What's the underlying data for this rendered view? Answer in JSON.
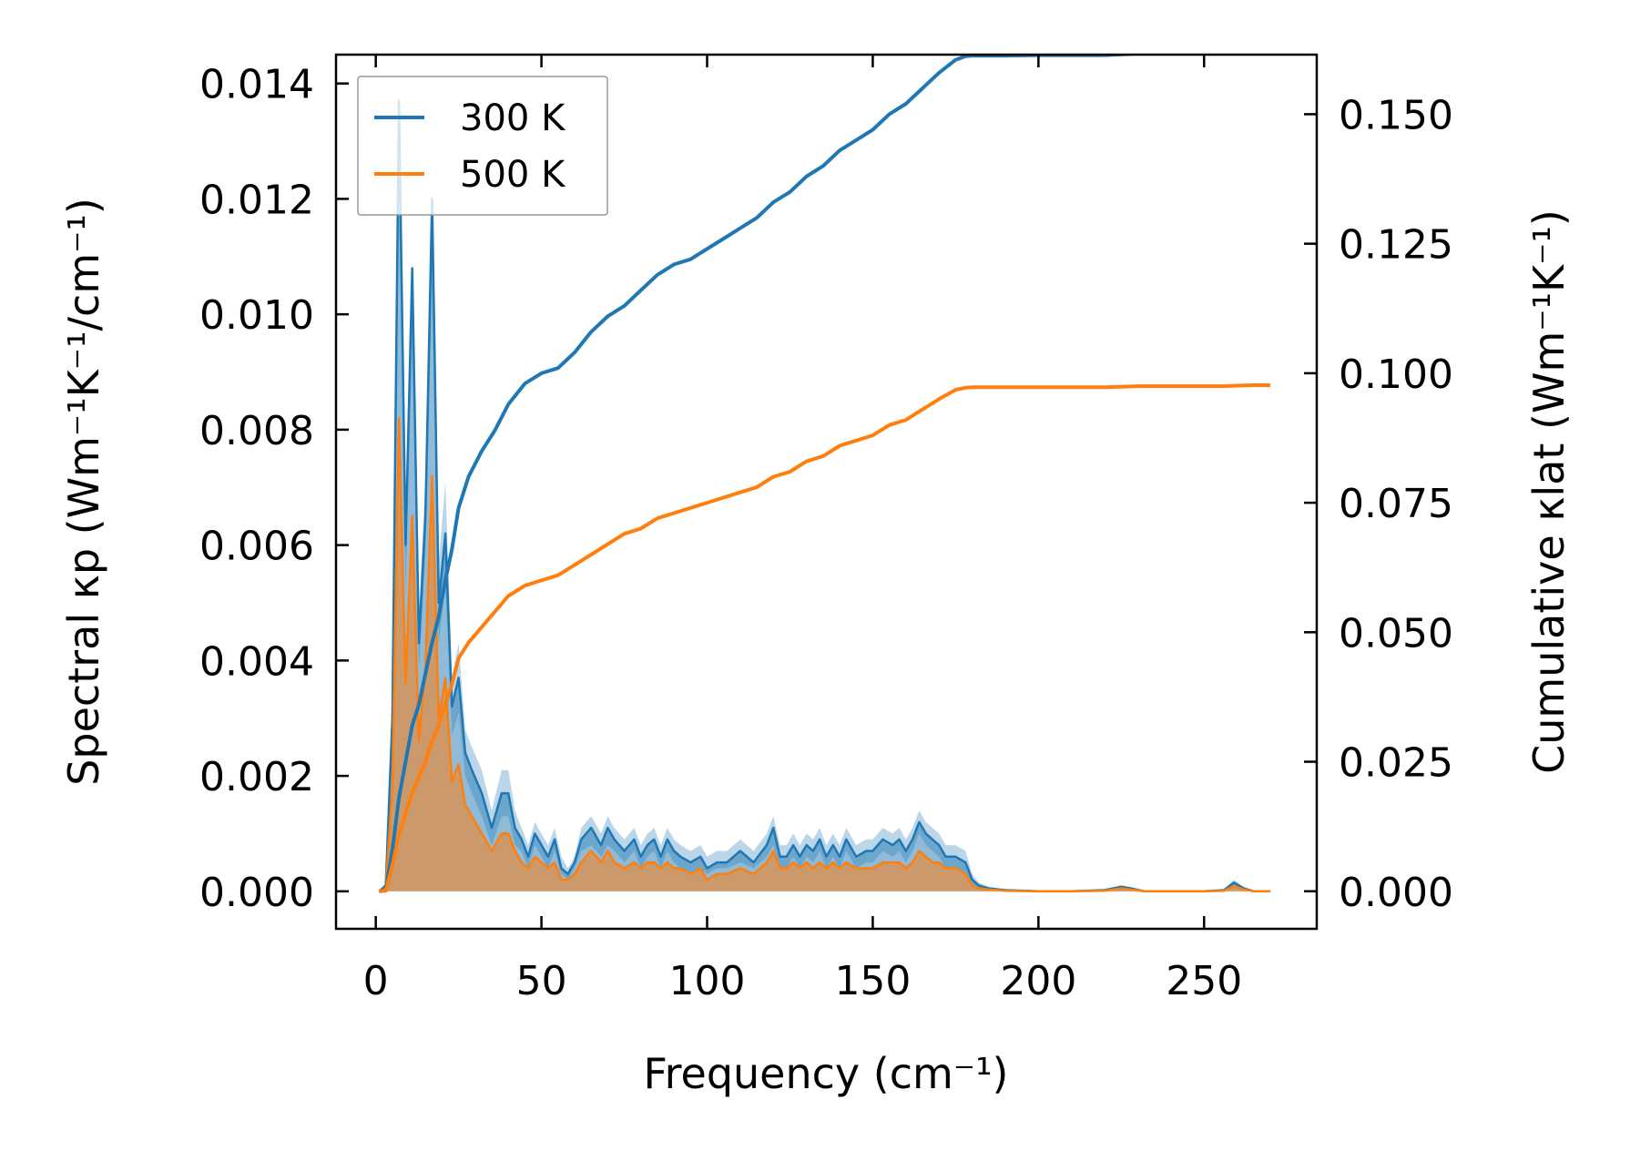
{
  "chart_data": {
    "type": "line",
    "x_label": "Frequency (cm⁻¹)",
    "y_left_label": "Spectral κp (Wm⁻¹K⁻¹/cm⁻¹)",
    "y_right_label": "Cumulative κlat (Wm⁻¹K⁻¹)",
    "xlim": [
      -12,
      284
    ],
    "ylim_left": [
      -0.00065,
      0.0145
    ],
    "ylim_right": [
      -0.00725,
      0.1615
    ],
    "x_ticks": [
      "0",
      "50",
      "100",
      "150",
      "200",
      "250"
    ],
    "x_tick_values": [
      0,
      50,
      100,
      150,
      200,
      250
    ],
    "y_left_ticks": [
      "0.000",
      "0.002",
      "0.004",
      "0.006",
      "0.008",
      "0.010",
      "0.012",
      "0.014"
    ],
    "y_left_tick_values": [
      0,
      0.002,
      0.004,
      0.006,
      0.008,
      0.01,
      0.012,
      0.014
    ],
    "y_right_ticks": [
      "0.000",
      "0.025",
      "0.050",
      "0.075",
      "0.100",
      "0.125",
      "0.150"
    ],
    "y_right_tick_values": [
      0,
      0.025,
      0.05,
      0.075,
      0.1,
      0.125,
      0.15
    ],
    "legend": {
      "position": "top-left",
      "entries": [
        "300 K",
        "500 K"
      ]
    },
    "series": [
      {
        "name": "300 K",
        "color": "#1f77b4",
        "spectral": {
          "x": [
            1,
            3,
            5,
            7,
            9,
            11,
            13,
            15,
            17,
            19,
            21,
            23,
            25,
            27,
            29,
            32,
            35,
            38,
            40,
            42,
            44,
            46,
            48,
            50,
            52,
            54,
            56,
            58,
            60,
            62,
            65,
            68,
            70,
            72,
            75,
            78,
            80,
            82,
            84,
            86,
            88,
            90,
            92,
            95,
            98,
            100,
            103,
            106,
            110,
            114,
            118,
            120,
            122,
            124,
            126,
            128,
            130,
            132,
            134,
            136,
            138,
            140,
            142,
            145,
            148,
            150,
            153,
            156,
            158,
            160,
            162,
            164,
            166,
            168,
            170,
            172,
            175,
            178,
            180,
            182,
            185,
            190,
            200,
            210,
            220,
            225,
            228,
            232,
            240,
            250,
            256,
            259,
            262,
            265,
            270
          ],
          "y": [
            0,
            0.0001,
            0.003,
            0.0137,
            0.006,
            0.0108,
            0.0043,
            0.0065,
            0.012,
            0.005,
            0.0062,
            0.0032,
            0.0037,
            0.0024,
            0.0021,
            0.0017,
            0.0011,
            0.0017,
            0.0017,
            0.0011,
            0.0009,
            0.0006,
            0.001,
            0.0008,
            0.0006,
            0.0009,
            0.0004,
            0.0003,
            0.0005,
            0.0009,
            0.0011,
            0.0008,
            0.0011,
            0.0009,
            0.0007,
            0.0009,
            0.0006,
            0.0008,
            0.0009,
            0.0006,
            0.0009,
            0.0007,
            0.0006,
            0.0005,
            0.0006,
            0.0004,
            0.0005,
            0.0005,
            0.0007,
            0.0005,
            0.0008,
            0.0011,
            0.0006,
            0.0006,
            0.0008,
            0.0006,
            0.0008,
            0.0007,
            0.0009,
            0.0006,
            0.0008,
            0.0006,
            0.0009,
            0.0006,
            0.0007,
            0.0007,
            0.0009,
            0.0008,
            0.0009,
            0.0007,
            0.0009,
            0.0012,
            0.001,
            0.0009,
            0.0008,
            0.0006,
            0.0006,
            0.0005,
            0.0002,
            0.0001,
            5e-05,
            2e-05,
            0,
            0,
            2e-05,
            8e-05,
            5e-05,
            0,
            0,
            0,
            2e-05,
            0.00015,
            5e-05,
            0,
            0
          ],
          "lower": [
            0,
            5e-05,
            0.0025,
            0.012,
            0.0052,
            0.0095,
            0.0038,
            0.0058,
            0.0105,
            0.0043,
            0.0053,
            0.0027,
            0.0031,
            0.002,
            0.0017,
            0.0013,
            0.0008,
            0.0013,
            0.0013,
            0.0008,
            0.0007,
            0.0004,
            0.0008,
            0.0006,
            0.0004,
            0.0007,
            0.0003,
            0.0002,
            0.0004,
            0.0007,
            0.0008,
            0.0006,
            0.0008,
            0.0007,
            0.0005,
            0.0007,
            0.0004,
            0.0006,
            0.0007,
            0.0004,
            0.0007,
            0.0005,
            0.0004,
            0.0003,
            0.0004,
            0.0003,
            0.0004,
            0.0004,
            0.0005,
            0.0004,
            0.0006,
            0.0008,
            0.0004,
            0.0004,
            0.0006,
            0.0004,
            0.0006,
            0.0005,
            0.0007,
            0.0004,
            0.0006,
            0.0004,
            0.0007,
            0.0004,
            0.0005,
            0.0005,
            0.0007,
            0.0006,
            0.0007,
            0.0005,
            0.0007,
            0.001,
            0.0008,
            0.0007,
            0.0006,
            0.0004,
            0.0004,
            0.0003,
            0.0001,
            5e-05,
            2e-05,
            1e-05,
            0,
            0,
            1e-05,
            5e-05,
            3e-05,
            0,
            0,
            0,
            1e-05,
            0.0001,
            3e-05,
            0,
            0
          ],
          "upper": [
            0,
            0.00015,
            0.0035,
            0.0138,
            0.0068,
            0.0109,
            0.0048,
            0.0072,
            0.0121,
            0.0057,
            0.0071,
            0.0037,
            0.0043,
            0.0028,
            0.0025,
            0.0021,
            0.0014,
            0.0021,
            0.0021,
            0.0014,
            0.0011,
            0.0008,
            0.0012,
            0.001,
            0.0008,
            0.0011,
            0.0006,
            0.0004,
            0.0006,
            0.0011,
            0.0013,
            0.001,
            0.0013,
            0.0011,
            0.0009,
            0.0011,
            0.0008,
            0.001,
            0.0011,
            0.0008,
            0.0011,
            0.0009,
            0.0008,
            0.0007,
            0.0008,
            0.0006,
            0.0007,
            0.0007,
            0.0009,
            0.0007,
            0.001,
            0.0013,
            0.0008,
            0.0008,
            0.001,
            0.0008,
            0.001,
            0.0009,
            0.0011,
            0.0008,
            0.001,
            0.0008,
            0.0011,
            0.0008,
            0.0009,
            0.0009,
            0.0011,
            0.001,
            0.0011,
            0.0009,
            0.0011,
            0.0014,
            0.0012,
            0.0011,
            0.001,
            0.0008,
            0.0008,
            0.0007,
            0.0003,
            0.00015,
            8e-05,
            3e-05,
            0,
            0,
            3e-05,
            0.0001,
            7e-05,
            0,
            0,
            0,
            3e-05,
            0.0002,
            7e-05,
            0,
            0
          ]
        },
        "cumulative": {
          "x": [
            1,
            3,
            5,
            7,
            9,
            11,
            13,
            15,
            17,
            19,
            21,
            23,
            25,
            28,
            32,
            36,
            40,
            45,
            50,
            55,
            60,
            65,
            70,
            75,
            80,
            85,
            90,
            95,
            100,
            105,
            110,
            115,
            120,
            125,
            130,
            135,
            140,
            145,
            150,
            155,
            160,
            165,
            170,
            175,
            178,
            180,
            185,
            190,
            200,
            210,
            220,
            230,
            240,
            250,
            255,
            260,
            265,
            270
          ],
          "y": [
            0,
            0.0002,
            0.008,
            0.018,
            0.025,
            0.032,
            0.036,
            0.042,
            0.048,
            0.053,
            0.06,
            0.066,
            0.074,
            0.08,
            0.085,
            0.089,
            0.094,
            0.098,
            0.1,
            0.101,
            0.104,
            0.108,
            0.111,
            0.113,
            0.116,
            0.119,
            0.121,
            0.122,
            0.124,
            0.126,
            0.128,
            0.13,
            0.133,
            0.135,
            0.138,
            0.14,
            0.143,
            0.145,
            0.147,
            0.15,
            0.152,
            0.155,
            0.158,
            0.1605,
            0.1612,
            0.1613,
            0.1613,
            0.1613,
            0.1614,
            0.1614,
            0.1614,
            0.1617,
            0.1617,
            0.1617,
            0.1617,
            0.1619,
            0.162,
            0.162
          ]
        }
      },
      {
        "name": "500 K",
        "color": "#ff7f0e",
        "spectral": {
          "x": [
            1,
            3,
            5,
            7,
            9,
            11,
            13,
            15,
            17,
            19,
            21,
            23,
            25,
            27,
            29,
            32,
            35,
            38,
            40,
            42,
            44,
            46,
            48,
            50,
            52,
            54,
            56,
            58,
            60,
            62,
            65,
            68,
            70,
            72,
            75,
            78,
            80,
            82,
            84,
            86,
            88,
            90,
            92,
            95,
            98,
            100,
            103,
            106,
            110,
            114,
            118,
            120,
            122,
            124,
            126,
            128,
            130,
            132,
            134,
            136,
            138,
            140,
            142,
            145,
            148,
            150,
            153,
            156,
            158,
            160,
            162,
            164,
            166,
            168,
            170,
            172,
            175,
            178,
            180,
            182,
            185,
            190,
            200,
            210,
            220,
            225,
            228,
            232,
            240,
            250,
            256,
            259,
            262,
            265,
            270
          ],
          "y": [
            0,
            5e-05,
            0.0018,
            0.0082,
            0.0036,
            0.0065,
            0.0026,
            0.0039,
            0.0072,
            0.003,
            0.0037,
            0.0019,
            0.0022,
            0.0015,
            0.0013,
            0.001,
            0.0007,
            0.001,
            0.001,
            0.0007,
            0.0005,
            0.0004,
            0.0006,
            0.0005,
            0.0004,
            0.0005,
            0.0002,
            0.0002,
            0.0003,
            0.0005,
            0.0007,
            0.0005,
            0.0007,
            0.0005,
            0.0004,
            0.0005,
            0.0004,
            0.0005,
            0.0005,
            0.0004,
            0.0005,
            0.0004,
            0.0004,
            0.0003,
            0.0004,
            0.0002,
            0.0003,
            0.0003,
            0.0004,
            0.0003,
            0.0005,
            0.0007,
            0.0004,
            0.0004,
            0.0005,
            0.0004,
            0.0005,
            0.0004,
            0.0005,
            0.0004,
            0.0005,
            0.0004,
            0.0005,
            0.0004,
            0.0004,
            0.0004,
            0.0005,
            0.0005,
            0.0005,
            0.0004,
            0.0005,
            0.0007,
            0.0006,
            0.0005,
            0.0005,
            0.0004,
            0.0004,
            0.0003,
            0.0001,
            5e-05,
            3e-05,
            1e-05,
            0,
            0,
            1e-05,
            5e-05,
            3e-05,
            0,
            0,
            0,
            1e-05,
            9e-05,
            3e-05,
            0,
            0
          ]
        },
        "cumulative": {
          "x": [
            1,
            3,
            5,
            7,
            9,
            11,
            13,
            15,
            17,
            19,
            21,
            23,
            25,
            28,
            32,
            36,
            40,
            45,
            50,
            55,
            60,
            65,
            70,
            75,
            80,
            85,
            90,
            95,
            100,
            105,
            110,
            115,
            120,
            125,
            130,
            135,
            140,
            145,
            150,
            155,
            160,
            165,
            170,
            175,
            178,
            180,
            185,
            190,
            200,
            210,
            220,
            230,
            240,
            250,
            255,
            260,
            265,
            270
          ],
          "y": [
            0,
            0.0001,
            0.005,
            0.011,
            0.015,
            0.019,
            0.022,
            0.025,
            0.029,
            0.032,
            0.036,
            0.04,
            0.045,
            0.048,
            0.051,
            0.054,
            0.057,
            0.059,
            0.06,
            0.061,
            0.063,
            0.065,
            0.067,
            0.069,
            0.07,
            0.072,
            0.073,
            0.074,
            0.075,
            0.076,
            0.077,
            0.078,
            0.08,
            0.081,
            0.083,
            0.084,
            0.086,
            0.087,
            0.088,
            0.09,
            0.091,
            0.093,
            0.095,
            0.0968,
            0.0972,
            0.0973,
            0.0973,
            0.0973,
            0.0973,
            0.0973,
            0.0973,
            0.0975,
            0.0975,
            0.0975,
            0.0975,
            0.0976,
            0.0977,
            0.0977
          ]
        }
      }
    ]
  }
}
